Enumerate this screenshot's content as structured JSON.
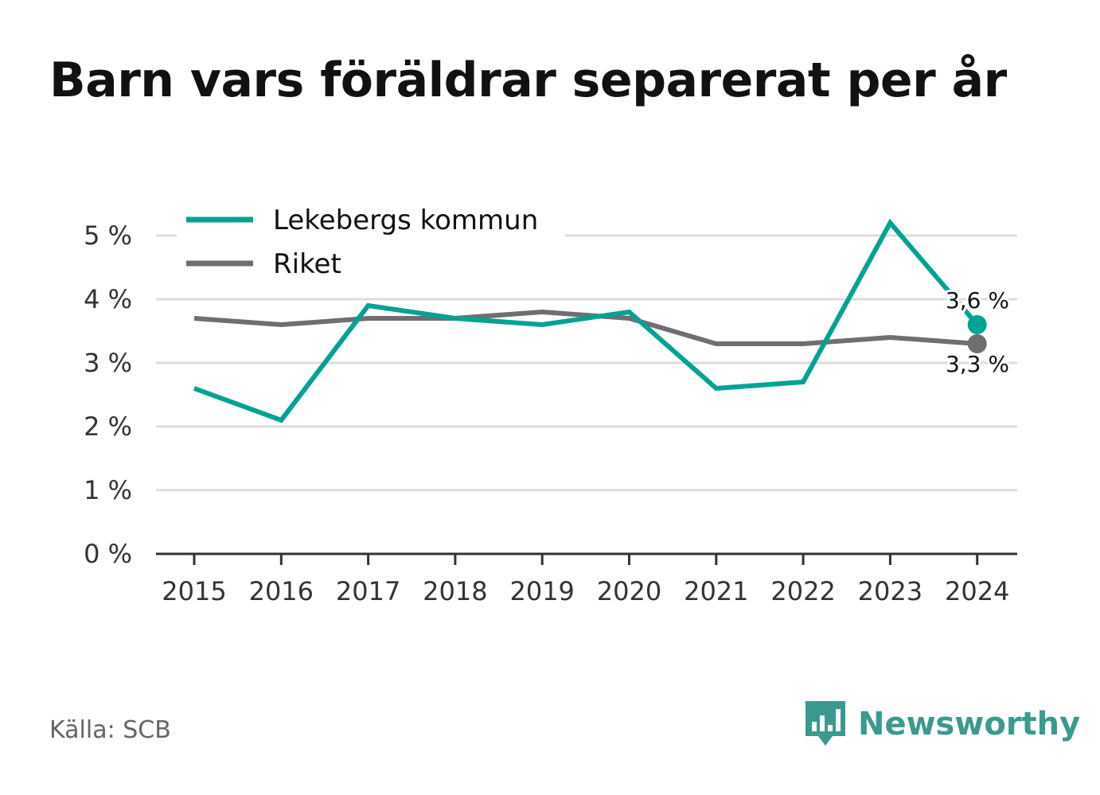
{
  "title": "Barn vars föräldrar separerat per år",
  "source": "Källa: SCB",
  "brand": {
    "name": "Newsworthy",
    "icon": "bar-chart-speech-bubble-icon",
    "color": "#3a9a8f"
  },
  "colors": {
    "lekeberg": "#00a393",
    "riket": "#6e6e73",
    "grid": "#dddddd",
    "axis": "#333333"
  },
  "chart_data": {
    "type": "line",
    "title": "Barn vars föräldrar separerat per år",
    "x": [
      "2015",
      "2016",
      "2017",
      "2018",
      "2019",
      "2020",
      "2021",
      "2022",
      "2023",
      "2024"
    ],
    "series": [
      {
        "name": "Lekebergs kommun",
        "values": [
          2.6,
          2.1,
          3.9,
          3.7,
          3.6,
          3.8,
          2.6,
          2.7,
          5.2,
          3.6
        ]
      },
      {
        "name": "Riket",
        "values": [
          3.7,
          3.6,
          3.7,
          3.7,
          3.8,
          3.7,
          3.3,
          3.3,
          3.4,
          3.3
        ]
      }
    ],
    "yticks": [
      "0 %",
      "1 %",
      "2 %",
      "3 %",
      "4 %",
      "5 %"
    ],
    "ylim": [
      0,
      5
    ],
    "grid": true,
    "legend": "top-left",
    "end_labels": [
      "3,6 %",
      "3,3 %"
    ]
  }
}
